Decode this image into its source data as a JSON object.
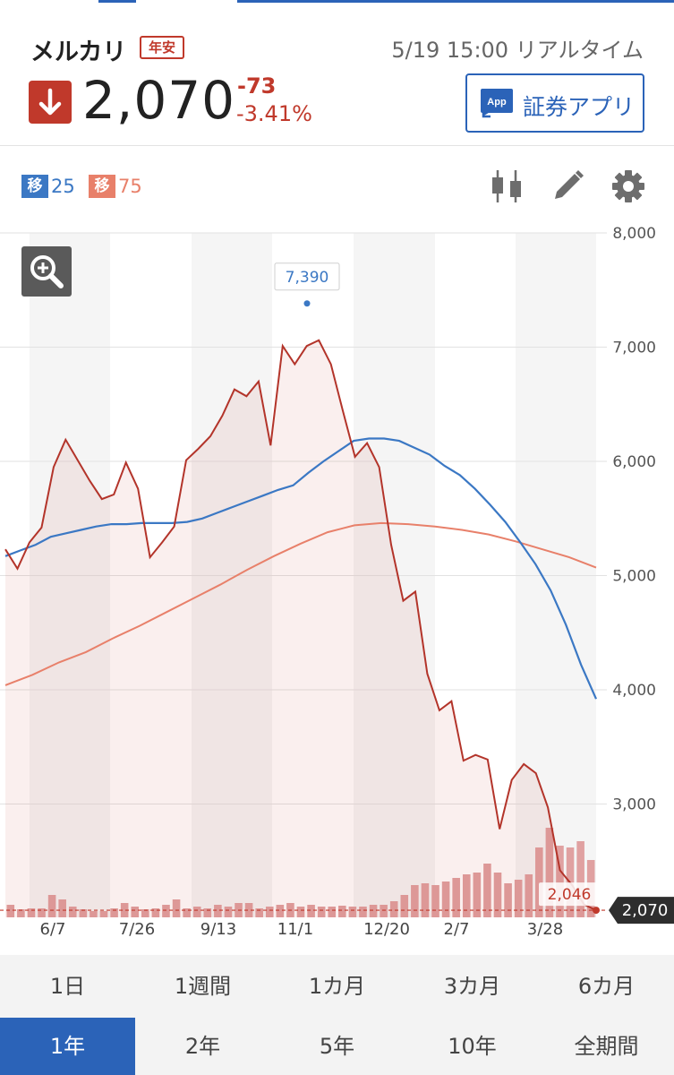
{
  "header": {
    "stock_name": "メルカリ",
    "badge": "年安",
    "timestamp": "5/19 15:00 リアルタイム",
    "price": "2,070",
    "change": "-73",
    "change_pct": "-3.41%",
    "app_button_label": "証券アプリ",
    "app_icon_text": "App",
    "direction": "down"
  },
  "legend": [
    {
      "tag": "移",
      "value": "25",
      "color": "#3b78c4"
    },
    {
      "tag": "移",
      "value": "75",
      "color": "#e8806a"
    }
  ],
  "toolbar": {
    "icons": [
      "candlestick-icon",
      "pencil-icon",
      "gear-icon"
    ]
  },
  "colors": {
    "accent_blue": "#2b63b8",
    "price_red": "#c0392b",
    "ma25": "#3b78c4",
    "ma75": "#e8806a",
    "volume": "#e0a1a1"
  },
  "chart_data": {
    "type": "line",
    "y_ticks": [
      "8,000",
      "7,000",
      "6,000",
      "5,000",
      "4,000",
      "3,000"
    ],
    "ylim": [
      2000,
      8000
    ],
    "x_ticks": [
      "6/7",
      "7/26",
      "9/13",
      "11/1",
      "12/20",
      "2/7",
      "3/28"
    ],
    "high_label": "7,390",
    "high_value": 7390,
    "low_label": "2,046",
    "low_value": 2046,
    "current_label": "2,070",
    "current_value": 2070,
    "series": [
      {
        "values": [
          5230,
          5060,
          5290,
          5420,
          5950,
          6190,
          6010,
          5830,
          5670,
          5710,
          5990,
          5760,
          5160,
          5290,
          5430,
          6010,
          6110,
          6220,
          6400,
          6630,
          6570,
          6700,
          6140,
          7010,
          6850,
          7010,
          7060,
          6850,
          6440,
          6040,
          6160,
          5950,
          5270,
          4780,
          4860,
          4140,
          3820,
          3900,
          3380,
          3430,
          3390,
          2780,
          3210,
          3350,
          3270,
          2970,
          2420,
          2290,
          2120,
          2070
        ]
      },
      {
        "values": [
          5170,
          5220,
          5270,
          5340,
          5370,
          5400,
          5430,
          5450,
          5450,
          5460,
          5460,
          5460,
          5470,
          5500,
          5550,
          5600,
          5650,
          5700,
          5750,
          5790,
          5900,
          6000,
          6090,
          6180,
          6200,
          6200,
          6180,
          6120,
          6060,
          5960,
          5880,
          5760,
          5620,
          5470,
          5290,
          5100,
          4870,
          4570,
          4220,
          3920
        ]
      },
      {
        "values": [
          4040,
          4130,
          4240,
          4330,
          4450,
          4560,
          4680,
          4800,
          4920,
          5050,
          5170,
          5280,
          5380,
          5440,
          5460,
          5450,
          5430,
          5400,
          5360,
          5300,
          5230,
          5160,
          5070
        ]
      }
    ],
    "volume": [
      0.14,
      0.09,
      0.1,
      0.1,
      0.25,
      0.2,
      0.12,
      0.09,
      0.07,
      0.07,
      0.1,
      0.16,
      0.12,
      0.09,
      0.1,
      0.14,
      0.2,
      0.1,
      0.12,
      0.1,
      0.14,
      0.12,
      0.16,
      0.16,
      0.1,
      0.12,
      0.14,
      0.16,
      0.12,
      0.14,
      0.12,
      0.12,
      0.13,
      0.12,
      0.12,
      0.14,
      0.14,
      0.18,
      0.25,
      0.36,
      0.38,
      0.36,
      0.4,
      0.44,
      0.48,
      0.5,
      0.6,
      0.5,
      0.38,
      0.42,
      0.48,
      0.78,
      1.0,
      0.8,
      0.78,
      0.85,
      0.64
    ]
  },
  "periods_row1": [
    "1日",
    "1週間",
    "1カ月",
    "3カ月",
    "6カ月"
  ],
  "periods_row2": [
    "1年",
    "2年",
    "5年",
    "10年",
    "全期間"
  ],
  "active_period": "1年"
}
